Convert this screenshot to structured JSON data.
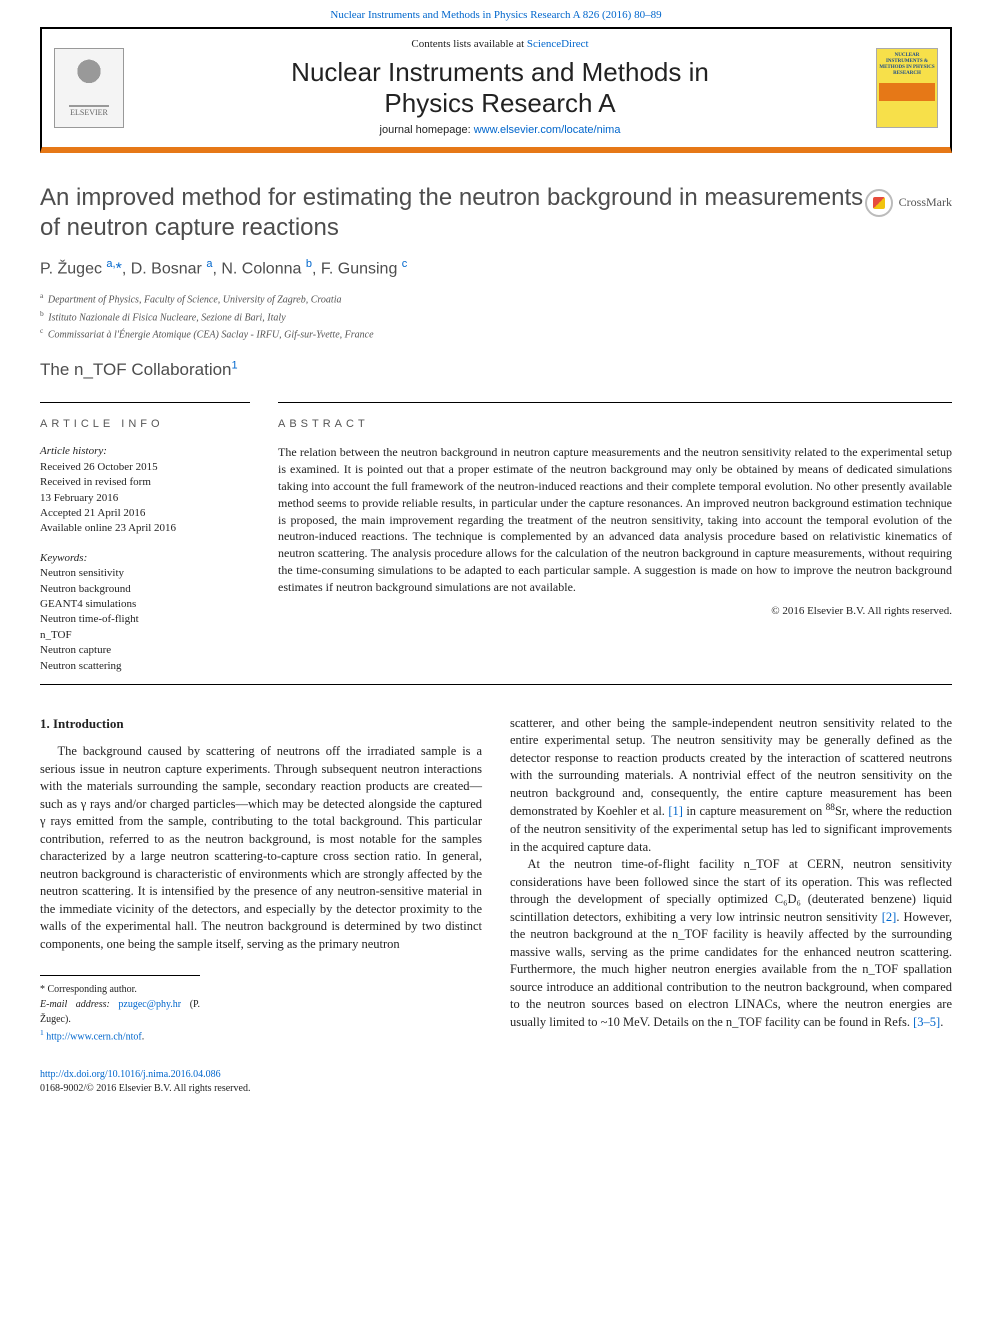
{
  "header": {
    "top_ref_link": "Nuclear Instruments and Methods in Physics Research A 826 (2016) 80–89",
    "contents_prefix": "Contents lists available at ",
    "contents_link": "ScienceDirect",
    "journal_title_line1": "Nuclear Instruments and Methods in",
    "journal_title_line2": "Physics Research A",
    "homepage_prefix": "journal homepage: ",
    "homepage_link": "www.elsevier.com/locate/nima",
    "elsevier_label": "ELSEVIER",
    "cover_text": "NUCLEAR INSTRUMENTS & METHODS IN PHYSICS RESEARCH"
  },
  "crossmark_label": "CrossMark",
  "article": {
    "title": "An improved method for estimating the neutron background in measurements of neutron capture reactions",
    "authors_html": "P. Žugec <sup>a,</sup><span class='ast'>*</span>, D. Bosnar <sup>a</sup>, N. Colonna <sup>b</sup>, F. Gunsing <sup>c</sup>",
    "affiliations": [
      {
        "sup": "a",
        "text": "Department of Physics, Faculty of Science, University of Zagreb, Croatia"
      },
      {
        "sup": "b",
        "text": "Istituto Nazionale di Fisica Nucleare, Sezione di Bari, Italy"
      },
      {
        "sup": "c",
        "text": "Commissariat à l'Énergie Atomique (CEA) Saclay - IRFU, Gif-sur-Yvette, France"
      }
    ],
    "collaboration": "The n_TOF Collaboration",
    "collab_sup": "1"
  },
  "info": {
    "heading": "article info",
    "history_head": "Article history:",
    "history": [
      "Received 26 October 2015",
      "Received in revised form",
      "13 February 2016",
      "Accepted 21 April 2016",
      "Available online 23 April 2016"
    ],
    "keywords_head": "Keywords:",
    "keywords": [
      "Neutron sensitivity",
      "Neutron background",
      "GEANT4 simulations",
      "Neutron time-of-flight",
      "n_TOF",
      "Neutron capture",
      "Neutron scattering"
    ]
  },
  "abstract": {
    "heading": "abstract",
    "text": "The relation between the neutron background in neutron capture measurements and the neutron sensitivity related to the experimental setup is examined. It is pointed out that a proper estimate of the neutron background may only be obtained by means of dedicated simulations taking into account the full framework of the neutron-induced reactions and their complete temporal evolution. No other presently available method seems to provide reliable results, in particular under the capture resonances. An improved neutron background estimation technique is proposed, the main improvement regarding the treatment of the neutron sensitivity, taking into account the temporal evolution of the neutron-induced reactions. The technique is complemented by an advanced data analysis procedure based on relativistic kinematics of neutron scattering. The analysis procedure allows for the calculation of the neutron background in capture measurements, without requiring the time-consuming simulations to be adapted to each particular sample. A suggestion is made on how to improve the neutron background estimates if neutron background simulations are not available.",
    "copyright": "© 2016 Elsevier B.V. All rights reserved."
  },
  "body": {
    "section_heading": "1. Introduction",
    "p1": "The background caused by scattering of neutrons off the irradiated sample is a serious issue in neutron capture experiments. Through subsequent neutron interactions with the materials surrounding the sample, secondary reaction products are created—such as γ rays and/or charged particles—which may be detected alongside the captured γ rays emitted from the sample, contributing to the total background. This particular contribution, referred to as the neutron background, is most notable for the samples characterized by a large neutron scattering-to-capture cross section ratio. In general, neutron background is characteristic of environments which are strongly affected by the neutron scattering. It is intensified by the presence of any neutron-sensitive material in the immediate vicinity of the detectors, and especially by the detector proximity to the walls of the experimental hall. The neutron background is determined by two distinct components, one being the sample itself, serving as the primary neutron",
    "p2_pre": "scatterer, and other being the sample-independent neutron sensitivity related to the entire experimental setup. The neutron sensitivity may be generally defined as the detector response to reaction products created by the interaction of scattered neutrons with the surrounding materials. A nontrivial effect of the neutron sensitivity on the neutron background and, consequently, the entire capture measurement has been demonstrated by Koehler et al. ",
    "p2_ref1": "[1]",
    "p2_mid": " in capture measurement on ",
    "p2_sr": "88",
    "p2_sr_el": "Sr, where the reduction of the neutron sensitivity of the experimental setup has led to significant improvements in the acquired capture data.",
    "p3_pre": "At the neutron time-of-flight facility n_TOF at CERN, neutron sensitivity considerations have been followed since the start of its operation. This was reflected through the development of specially optimized C₆D₆ (deuterated benzene) liquid scintillation detectors, exhibiting a very low intrinsic neutron sensitivity ",
    "p3_ref2": "[2]",
    "p3_mid": ". However, the neutron background at the n_TOF facility is heavily affected by the surrounding massive walls, serving as the prime candidates for the enhanced neutron scattering. Furthermore, the much higher neutron energies available from the n_TOF spallation source introduce an additional contribution to the neutron background, when compared to the neutron sources based on electron LINACs, where the neutron energies are usually limited to ~10 MeV. Details on the n_TOF facility can be found in Refs. ",
    "p3_ref35": "[3–5]",
    "p3_end": "."
  },
  "footnotes": {
    "corr": "* Corresponding author.",
    "email_label": "E-mail address: ",
    "email": "pzugec@phy.hr",
    "email_suffix": " (P. Žugec).",
    "note1_sup": "1",
    "note1_link": "http://www.cern.ch/ntof",
    "note1_end": "."
  },
  "footer": {
    "doi": "http://dx.doi.org/10.1016/j.nima.2016.04.086",
    "issn_copyright": "0168-9002/© 2016 Elsevier B.V. All rights reserved."
  },
  "colors": {
    "link": "#0066cc",
    "orange": "#e67817",
    "text": "#222222",
    "muted": "#555555",
    "cover_bg": "#f7e04a",
    "cover_text": "#1a4b8c"
  }
}
